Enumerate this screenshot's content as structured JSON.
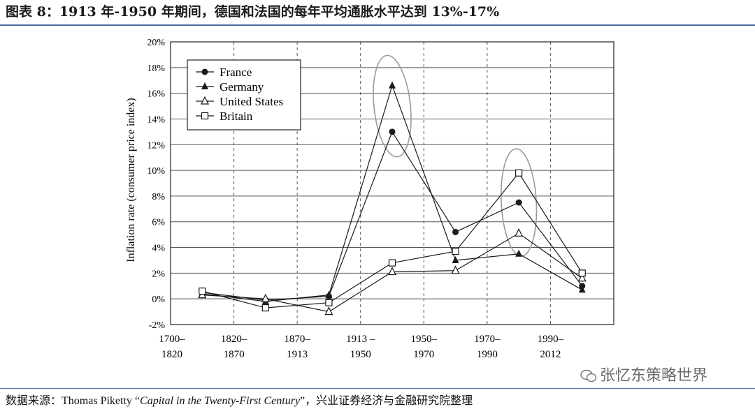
{
  "figure_title": "图表 8：1913 年-1950 年期间，德国和法国的每年平均通胀水平达到 13%-17%",
  "source": {
    "prefix": "数据来源：",
    "author": "Thomas Piketty",
    "open_quote": "“",
    "book": "Capital in the Twenty-First Century",
    "close_quote": "”",
    "suffix": "，兴业证券经济与金融研究院整理"
  },
  "watermark": "张忆东策略世界",
  "chart_data": {
    "type": "line",
    "ylabel": "Inflation rate (consumer price index)",
    "xlabel": "",
    "ylim": [
      -2,
      20
    ],
    "yticks": [
      "20%",
      "18%",
      "16%",
      "14%",
      "12%",
      "10%",
      "8%",
      "6%",
      "4%",
      "2%",
      "0%",
      "-2%"
    ],
    "categories": [
      [
        "1700–",
        "1820"
      ],
      [
        "1820–",
        "1870"
      ],
      [
        "1870–",
        "1913"
      ],
      [
        "1913 –",
        "1950"
      ],
      [
        "1950–",
        "1970"
      ],
      [
        "1970–",
        "1990"
      ],
      [
        "1990–",
        "2012"
      ]
    ],
    "grid": true,
    "legend_position": "top-left",
    "series": [
      {
        "name": "France",
        "marker": "filled-circle",
        "values": [
          0.5,
          -0.1,
          0.2,
          13.0,
          5.2,
          7.5,
          1.0
        ]
      },
      {
        "name": "Germany",
        "marker": "filled-triangle",
        "values": [
          0.4,
          -0.2,
          0.3,
          16.6,
          3.0,
          3.5,
          0.7
        ]
      },
      {
        "name": "United States",
        "marker": "open-triangle",
        "values": [
          0.3,
          0.0,
          -1.0,
          2.1,
          2.2,
          5.1,
          1.6
        ]
      },
      {
        "name": "Britain",
        "marker": "open-square",
        "values": [
          0.6,
          -0.7,
          -0.3,
          2.8,
          3.7,
          9.8,
          2.0
        ]
      }
    ],
    "highlight_ellipses": [
      "1913 –1950",
      "1970–1990"
    ],
    "colors": {
      "line": "#1a1a1a",
      "grid": "#555555",
      "highlight": "#9a9a9a"
    }
  }
}
